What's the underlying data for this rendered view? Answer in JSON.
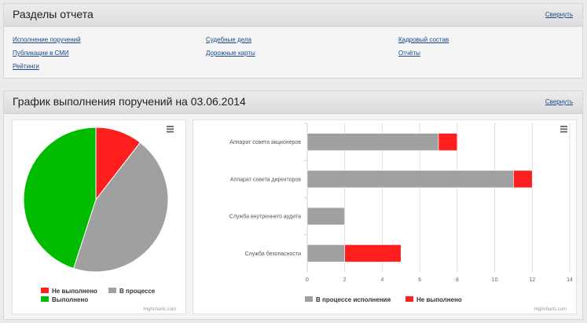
{
  "sections": {
    "title": "Разделы отчета",
    "collapse_label": "Свернуть",
    "links": [
      "Исполнение поручений",
      "Судебные дела",
      "Кадровый состав",
      "Публикации в СМИ",
      "Дорожные карты",
      "Отчёты",
      "Рейтинги"
    ]
  },
  "schedule": {
    "title": "График выполнения поручений на 03.06.2014",
    "collapse_label": "Свернуть"
  },
  "menu_icon": "hamburger-icon",
  "credit": "Highcharts.com",
  "chart_data": [
    {
      "type": "pie",
      "labels": [
        "Не выполнено",
        "В процессе",
        "Выполнено"
      ],
      "values": [
        10.5,
        44.5,
        45.0
      ],
      "colors": [
        "#ff1f1f",
        "#a0a0a0",
        "#00bb00"
      ],
      "legend": "bottom",
      "legend_order": [
        0,
        1,
        2
      ]
    },
    {
      "type": "bar",
      "orientation": "horizontal",
      "stacked": true,
      "categories": [
        "Аппарат совета акционеров",
        "Аппарат совета директоров",
        "Служба внутреннего аудита",
        "Служба безопасности"
      ],
      "series": [
        {
          "name": "В процессе исполнения",
          "values": [
            7,
            11,
            2,
            2
          ],
          "color": "#a0a0a0"
        },
        {
          "name": "Не выполнено",
          "values": [
            1,
            1,
            0,
            3
          ],
          "color": "#ff1f1f"
        }
      ],
      "xlim": [
        0,
        14
      ],
      "ticks": [
        "0",
        "2",
        "4",
        "6",
        "8",
        "10",
        "12",
        "14"
      ],
      "grid": true,
      "legend": "bottom"
    }
  ]
}
